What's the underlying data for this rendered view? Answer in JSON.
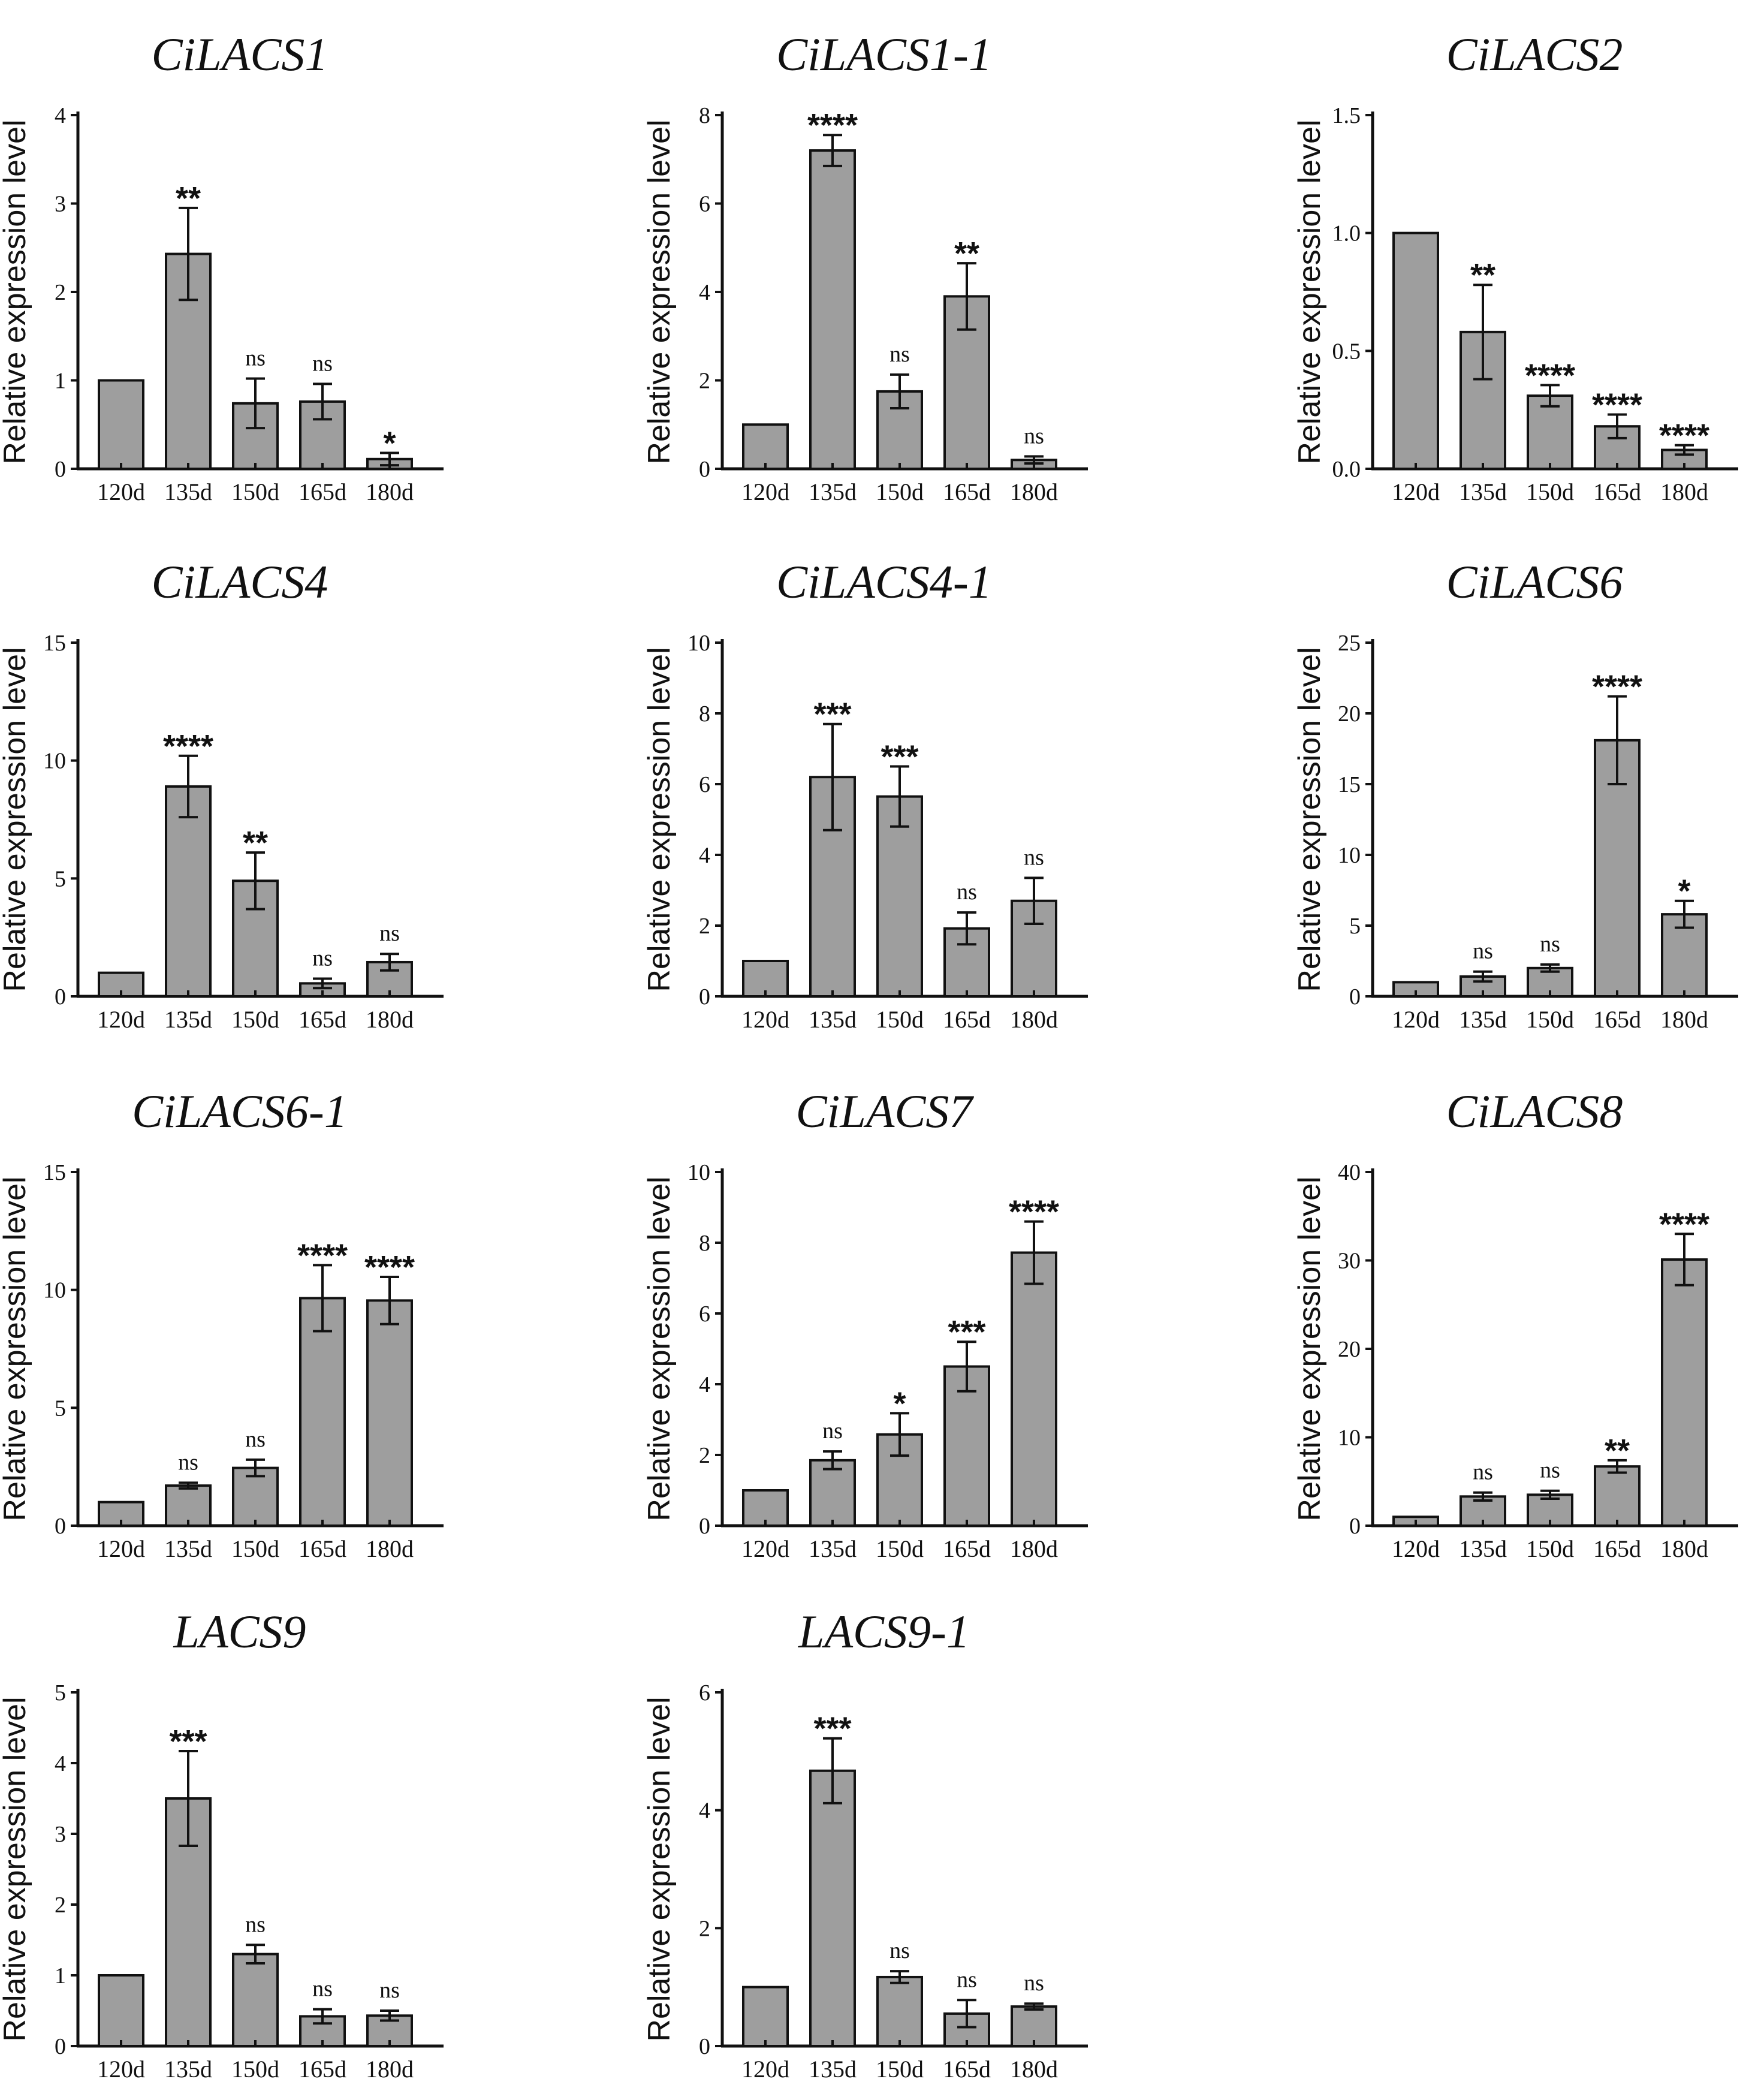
{
  "style": {
    "bar_fill": "#9e9e9e",
    "ink": "#111111",
    "background": "#ffffff"
  },
  "chart_data": [
    {
      "type": "bar",
      "title": "CiLACS1",
      "ylabel": "Relative expression level",
      "categories": [
        "120d",
        "135d",
        "150d",
        "165d",
        "180d"
      ],
      "values": [
        1.0,
        2.43,
        0.74,
        0.76,
        0.11
      ],
      "errors": [
        0.0,
        0.52,
        0.28,
        0.2,
        0.07
      ],
      "significance": [
        "",
        "**",
        "ns",
        "ns",
        "*"
      ],
      "ylim": [
        0,
        4
      ],
      "yticks": [
        0,
        1,
        2,
        3,
        4
      ],
      "ytick_labels": [
        "0",
        "1",
        "2",
        "3",
        "4"
      ]
    },
    {
      "type": "bar",
      "title": "CiLACS1-1",
      "ylabel": "Relative expression level",
      "categories": [
        "120d",
        "135d",
        "150d",
        "165d",
        "180d"
      ],
      "values": [
        1.0,
        7.2,
        1.75,
        3.9,
        0.2
      ],
      "errors": [
        0.0,
        0.35,
        0.38,
        0.75,
        0.08
      ],
      "significance": [
        "",
        "****",
        "ns",
        "**",
        "ns"
      ],
      "ylim": [
        0,
        8
      ],
      "yticks": [
        0,
        2,
        4,
        6,
        8
      ],
      "ytick_labels": [
        "0",
        "2",
        "4",
        "6",
        "8"
      ]
    },
    {
      "type": "bar",
      "title": "CiLACS2",
      "ylabel": "Relative expression level",
      "categories": [
        "120d",
        "135d",
        "150d",
        "165d",
        "180d"
      ],
      "values": [
        1.0,
        0.58,
        0.31,
        0.18,
        0.08
      ],
      "errors": [
        0.0,
        0.2,
        0.045,
        0.05,
        0.02
      ],
      "significance": [
        "",
        "**",
        "****",
        "****",
        "****"
      ],
      "ylim": [
        0,
        1.5
      ],
      "yticks": [
        0,
        0.5,
        1.0,
        1.5
      ],
      "ytick_labels": [
        "0.0",
        "0.5",
        "1.0",
        "1.5"
      ]
    },
    {
      "type": "bar",
      "title": "CiLACS4",
      "ylabel": "Relative expression level",
      "categories": [
        "120d",
        "135d",
        "150d",
        "165d",
        "180d"
      ],
      "values": [
        1.0,
        8.9,
        4.9,
        0.55,
        1.45
      ],
      "errors": [
        0.0,
        1.3,
        1.2,
        0.2,
        0.35
      ],
      "significance": [
        "",
        "****",
        "**",
        "ns",
        "ns"
      ],
      "ylim": [
        0,
        15
      ],
      "yticks": [
        0,
        5,
        10,
        15
      ],
      "ytick_labels": [
        "0",
        "5",
        "10",
        "15"
      ]
    },
    {
      "type": "bar",
      "title": "CiLACS4-1",
      "ylabel": "Relative expression level",
      "categories": [
        "120d",
        "135d",
        "150d",
        "165d",
        "180d"
      ],
      "values": [
        1.0,
        6.2,
        5.65,
        1.92,
        2.7
      ],
      "errors": [
        0.0,
        1.5,
        0.85,
        0.45,
        0.65
      ],
      "significance": [
        "",
        "***",
        "***",
        "ns",
        "ns"
      ],
      "ylim": [
        0,
        10
      ],
      "yticks": [
        0,
        2,
        4,
        6,
        8,
        10
      ],
      "ytick_labels": [
        "0",
        "2",
        "4",
        "6",
        "8",
        "10"
      ]
    },
    {
      "type": "bar",
      "title": "CiLACS6",
      "ylabel": "Relative expression level",
      "categories": [
        "120d",
        "135d",
        "150d",
        "165d",
        "180d"
      ],
      "values": [
        1.0,
        1.4,
        2.0,
        18.1,
        5.8
      ],
      "errors": [
        0.0,
        0.35,
        0.25,
        3.1,
        0.95
      ],
      "significance": [
        "",
        "ns",
        "ns",
        "****",
        "*"
      ],
      "ylim": [
        0,
        25
      ],
      "yticks": [
        0,
        5,
        10,
        15,
        20,
        25
      ],
      "ytick_labels": [
        "0",
        "5",
        "10",
        "15",
        "20",
        "25"
      ]
    },
    {
      "type": "bar",
      "title": "CiLACS6-1",
      "ylabel": "Relative expression level",
      "categories": [
        "120d",
        "135d",
        "150d",
        "165d",
        "180d"
      ],
      "values": [
        1.0,
        1.7,
        2.45,
        9.65,
        9.55
      ],
      "errors": [
        0.0,
        0.12,
        0.35,
        1.4,
        1.0
      ],
      "significance": [
        "",
        "ns",
        "ns",
        "****",
        "****"
      ],
      "ylim": [
        0,
        15
      ],
      "yticks": [
        0,
        5,
        10,
        15
      ],
      "ytick_labels": [
        "0",
        "5",
        "10",
        "15"
      ]
    },
    {
      "type": "bar",
      "title": "CiLACS7",
      "ylabel": "Relative expression level",
      "categories": [
        "120d",
        "135d",
        "150d",
        "165d",
        "180d"
      ],
      "values": [
        1.0,
        1.85,
        2.58,
        4.5,
        7.72
      ],
      "errors": [
        0.0,
        0.25,
        0.6,
        0.7,
        0.88
      ],
      "significance": [
        "",
        "ns",
        "*",
        "***",
        "****"
      ],
      "ylim": [
        0,
        10
      ],
      "yticks": [
        0,
        2,
        4,
        6,
        8,
        10
      ],
      "ytick_labels": [
        "0",
        "2",
        "4",
        "6",
        "8",
        "10"
      ]
    },
    {
      "type": "bar",
      "title": "CiLACS8",
      "ylabel": "Relative expression level",
      "categories": [
        "120d",
        "135d",
        "150d",
        "165d",
        "180d"
      ],
      "values": [
        1.0,
        3.3,
        3.5,
        6.7,
        30.1
      ],
      "errors": [
        0.0,
        0.45,
        0.45,
        0.7,
        2.9
      ],
      "significance": [
        "",
        "ns",
        "ns",
        "**",
        "****"
      ],
      "ylim": [
        0,
        40
      ],
      "yticks": [
        0,
        10,
        20,
        30,
        40
      ],
      "ytick_labels": [
        "0",
        "10",
        "20",
        "30",
        "40"
      ]
    },
    {
      "type": "bar",
      "title": "LACS9",
      "ylabel": "Relative expression level",
      "categories": [
        "120d",
        "135d",
        "150d",
        "165d",
        "180d"
      ],
      "values": [
        1.0,
        3.5,
        1.3,
        0.42,
        0.43
      ],
      "errors": [
        0.0,
        0.67,
        0.13,
        0.1,
        0.07
      ],
      "significance": [
        "",
        "***",
        "ns",
        "ns",
        "ns"
      ],
      "ylim": [
        0,
        5
      ],
      "yticks": [
        0,
        1,
        2,
        3,
        4,
        5
      ],
      "ytick_labels": [
        "0",
        "1",
        "2",
        "3",
        "4",
        "5"
      ]
    },
    {
      "type": "bar",
      "title": "LACS9-1",
      "ylabel": "Relative expression level",
      "categories": [
        "120d",
        "135d",
        "150d",
        "165d",
        "180d"
      ],
      "values": [
        1.0,
        4.67,
        1.17,
        0.55,
        0.67
      ],
      "errors": [
        0.0,
        0.55,
        0.1,
        0.23,
        0.05
      ],
      "significance": [
        "",
        "***",
        "ns",
        "ns",
        "ns"
      ],
      "ylim": [
        0,
        6
      ],
      "yticks": [
        0,
        2,
        4,
        6
      ],
      "ytick_labels": [
        "0",
        "2",
        "4",
        "6"
      ]
    }
  ]
}
